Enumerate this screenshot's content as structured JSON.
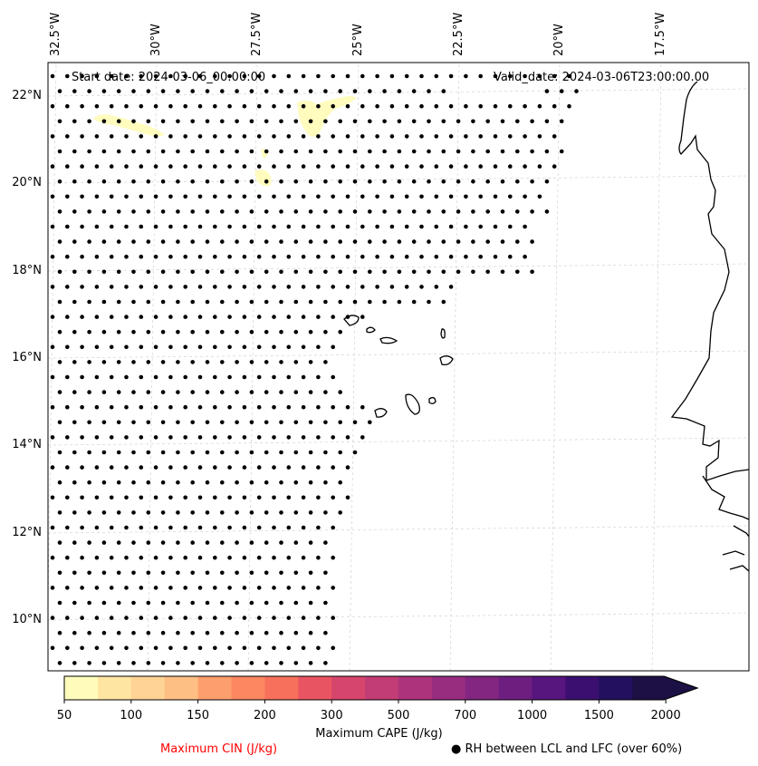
{
  "header": {
    "start_date": "Start date: 2024-03-06_00:00:00",
    "valid_date": "Valid_date: 2024-03-06T23:00:00.00"
  },
  "axes": {
    "longitude_labels": [
      "32.5°W",
      "30°W",
      "27.5°W",
      "25°W",
      "22.5°W",
      "20°W",
      "17.5°W"
    ],
    "latitude_labels": [
      "22°N",
      "20°N",
      "18°N",
      "16°N",
      "14°N",
      "12°N",
      "10°N"
    ]
  },
  "colorbar": {
    "label": "Maximum CAPE (J/kg)",
    "tick_labels": [
      "50",
      "100",
      "150",
      "200",
      "300",
      "500",
      "700",
      "1000",
      "1500",
      "2000"
    ],
    "colors": [
      "#fffcbb",
      "#fee6a2",
      "#fed395",
      "#febf84",
      "#fd9f6c",
      "#fc8761",
      "#f7705c",
      "#e95462",
      "#d6456c",
      "#c23c75",
      "#ad347c",
      "#982d80",
      "#822681",
      "#6d1f80",
      "#57157e",
      "#3b0f70",
      "#23105e",
      "#1c1044"
    ]
  },
  "legend": {
    "cin_label": "Maximum CIN (J/kg)",
    "cin_color": "#ff0000",
    "rh_label": "● RH between LCL and LFC (over 60%)"
  }
}
